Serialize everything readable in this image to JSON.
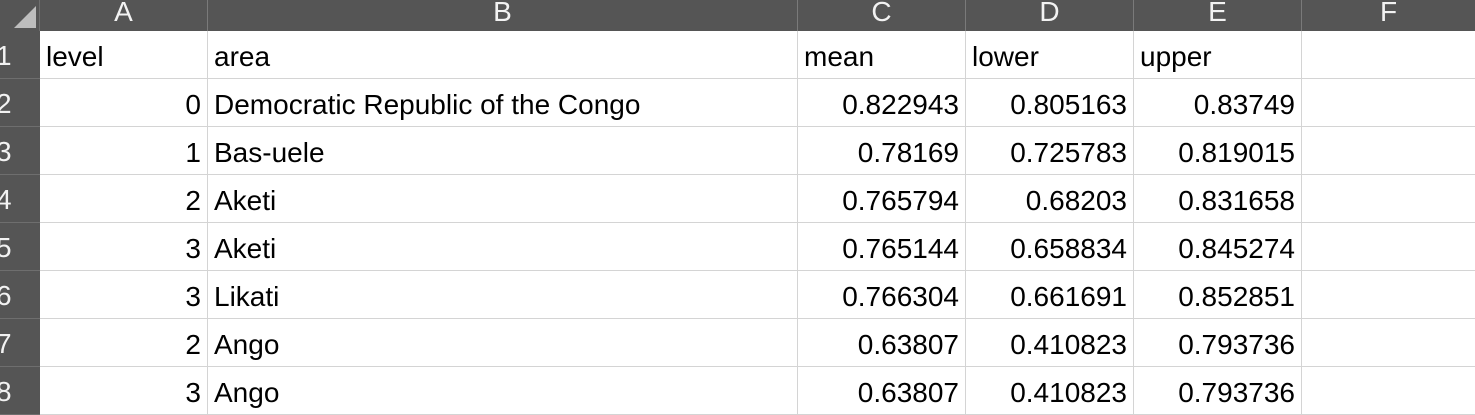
{
  "columns": [
    "A",
    "B",
    "C",
    "D",
    "E",
    "F"
  ],
  "rows": [
    "1",
    "2",
    "3",
    "4",
    "5",
    "6",
    "7",
    "8"
  ],
  "cells": [
    [
      "level",
      "area",
      "mean",
      "lower",
      "upper",
      ""
    ],
    [
      "0",
      "Democratic Republic of the Congo",
      "0.822943",
      "0.805163",
      "0.83749",
      ""
    ],
    [
      "1",
      "Bas-uele",
      "0.78169",
      "0.725783",
      "0.819015",
      ""
    ],
    [
      "2",
      "Aketi",
      "0.765794",
      "0.68203",
      "0.831658",
      ""
    ],
    [
      "3",
      "Aketi",
      "0.765144",
      "0.658834",
      "0.845274",
      ""
    ],
    [
      "3",
      "Likati",
      "0.766304",
      "0.661691",
      "0.852851",
      ""
    ],
    [
      "2",
      "Ango",
      "0.63807",
      "0.410823",
      "0.793736",
      ""
    ],
    [
      "3",
      "Ango",
      "0.63807",
      "0.410823",
      "0.793736",
      ""
    ]
  ],
  "colors": {
    "header_bg": "#555555",
    "header_text": "#f2f2f2",
    "gridline": "#d4d4d4"
  }
}
